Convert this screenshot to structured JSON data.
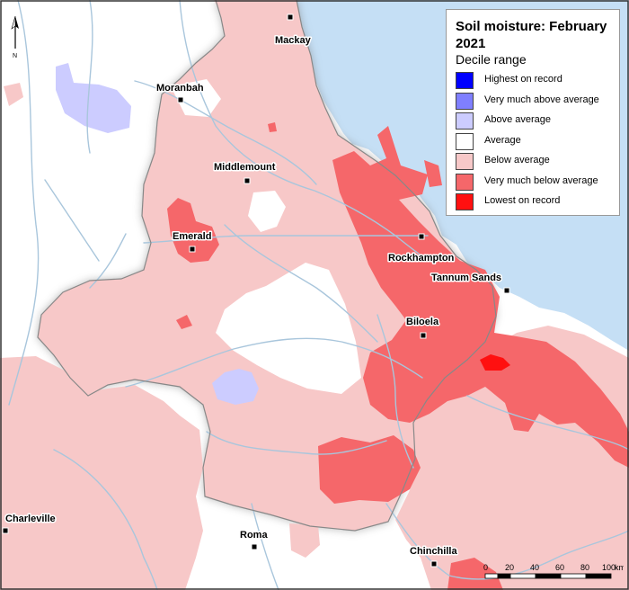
{
  "legend": {
    "title": "Soil moisture: February 2021",
    "subtitle": "Decile range",
    "items": [
      {
        "label": "Highest on record",
        "color": "#0000ff"
      },
      {
        "label": "Very much above average",
        "color": "#7f7fff"
      },
      {
        "label": "Above average",
        "color": "#ccccff"
      },
      {
        "label": "Average",
        "color": "#ffffff"
      },
      {
        "label": "Below average",
        "color": "#f7c8c8"
      },
      {
        "label": "Very much below average",
        "color": "#f5676a"
      },
      {
        "label": "Lowest on record",
        "color": "#ff1010"
      }
    ]
  },
  "north_label": "N",
  "scalebar": {
    "ticks": [
      "0",
      "20",
      "40",
      "60",
      "80",
      "100"
    ],
    "unit": "km"
  },
  "towns": [
    {
      "name": "Mackay"
    },
    {
      "name": "Moranbah"
    },
    {
      "name": "Middlemount"
    },
    {
      "name": "Emerald"
    },
    {
      "name": "Rockhampton"
    },
    {
      "name": "Tannum Sands"
    },
    {
      "name": "Biloela"
    },
    {
      "name": "Charleville"
    },
    {
      "name": "Roma"
    },
    {
      "name": "Chinchilla"
    }
  ],
  "colors": {
    "sea": "#c5dff5",
    "river": "#a9c6dc",
    "boundary": "#888888",
    "land": "#ffffff"
  }
}
